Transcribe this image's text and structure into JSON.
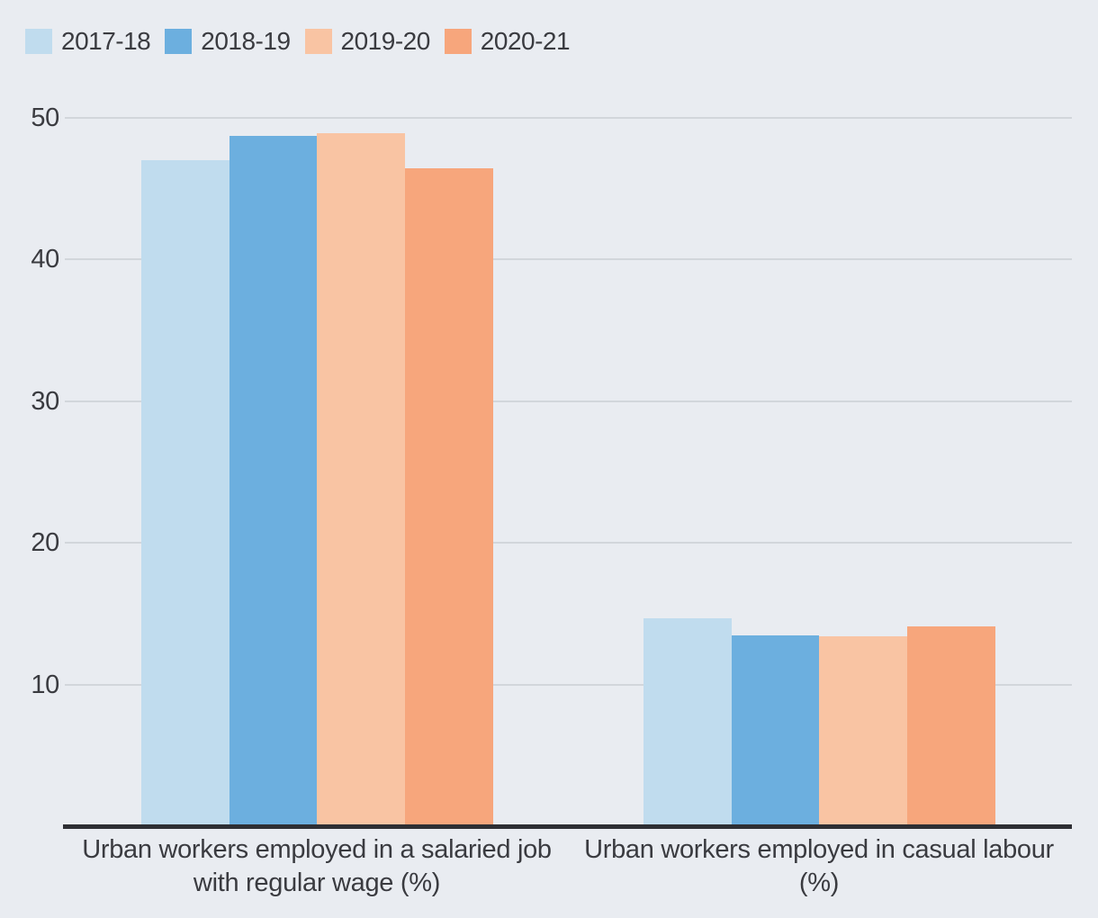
{
  "chart_data": {
    "type": "bar",
    "title": "",
    "xlabel": "",
    "ylabel": "",
    "categories": [
      "Urban workers employed in a salaried job with regular wage (%)",
      "Urban workers employed in casual labour (%)"
    ],
    "category_lines": [
      [
        "Urban workers employed in a salaried job",
        "with regular wage (%)"
      ],
      [
        "Urban workers employed in casual labour",
        "(%)"
      ]
    ],
    "series": [
      {
        "name": "2017-18",
        "color": "#c0dcee",
        "values": [
          47.0,
          14.7
        ]
      },
      {
        "name": "2018-19",
        "color": "#6cafdf",
        "values": [
          48.7,
          13.5
        ]
      },
      {
        "name": "2019-20",
        "color": "#f9c4a3",
        "values": [
          48.9,
          13.4
        ]
      },
      {
        "name": "2020-21",
        "color": "#f7a67c",
        "values": [
          46.4,
          14.1
        ]
      }
    ],
    "yticks": [
      10,
      20,
      30,
      40,
      50
    ],
    "ylim": [
      0,
      52
    ],
    "grid": true,
    "legend_position": "top-left"
  },
  "colors": {
    "background": "#e9ecf1",
    "gridline": "#d2d6db",
    "axis": "#2e2f34",
    "text": "#3a3b40"
  }
}
